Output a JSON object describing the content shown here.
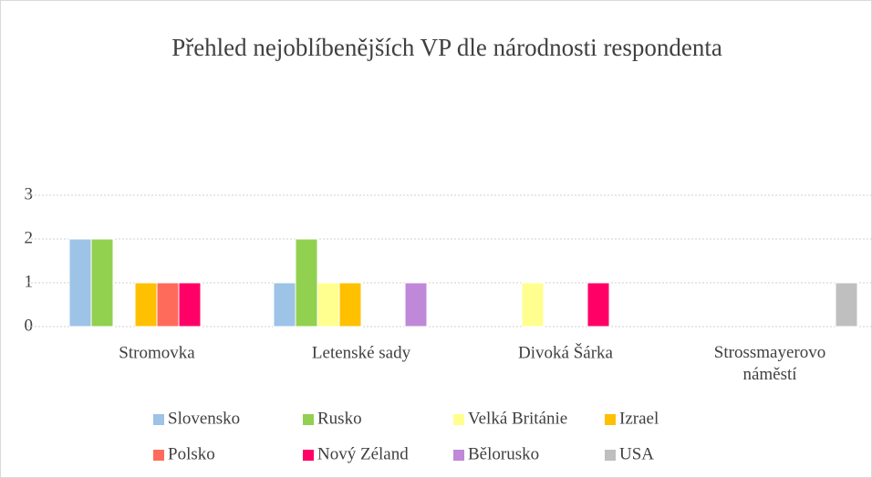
{
  "chart_data": {
    "type": "bar",
    "title": "Přehled nejoblíbenějších VP dle národnosti respondenta",
    "categories": [
      "Stromovka",
      "Letenské sady",
      "Divoká Šárka",
      "Strossmayerovo náměstí"
    ],
    "series": [
      {
        "name": "Slovensko",
        "color": "#9dc3e6",
        "values": [
          2,
          1,
          0,
          0
        ]
      },
      {
        "name": "Rusko",
        "color": "#92d050",
        "values": [
          2,
          2,
          0,
          0
        ]
      },
      {
        "name": "Velká Británie",
        "color": "#ffff8f",
        "values": [
          0,
          1,
          1,
          0
        ]
      },
      {
        "name": "Izrael",
        "color": "#ffc000",
        "values": [
          1,
          1,
          0,
          0
        ]
      },
      {
        "name": "Polsko",
        "color": "#ff6b5b",
        "values": [
          1,
          0,
          0,
          0
        ]
      },
      {
        "name": "Nový Zéland",
        "color": "#ff0066",
        "values": [
          1,
          0,
          1,
          0
        ]
      },
      {
        "name": "Bělorusko",
        "color": "#c088d8",
        "values": [
          0,
          1,
          0,
          0
        ]
      },
      {
        "name": "USA",
        "color": "#bfbfbf",
        "values": [
          0,
          0,
          0,
          1
        ]
      }
    ],
    "ylim": [
      0,
      3
    ],
    "yticks": [
      0,
      1,
      2,
      3
    ],
    "grid": true,
    "legend": "bottom"
  }
}
